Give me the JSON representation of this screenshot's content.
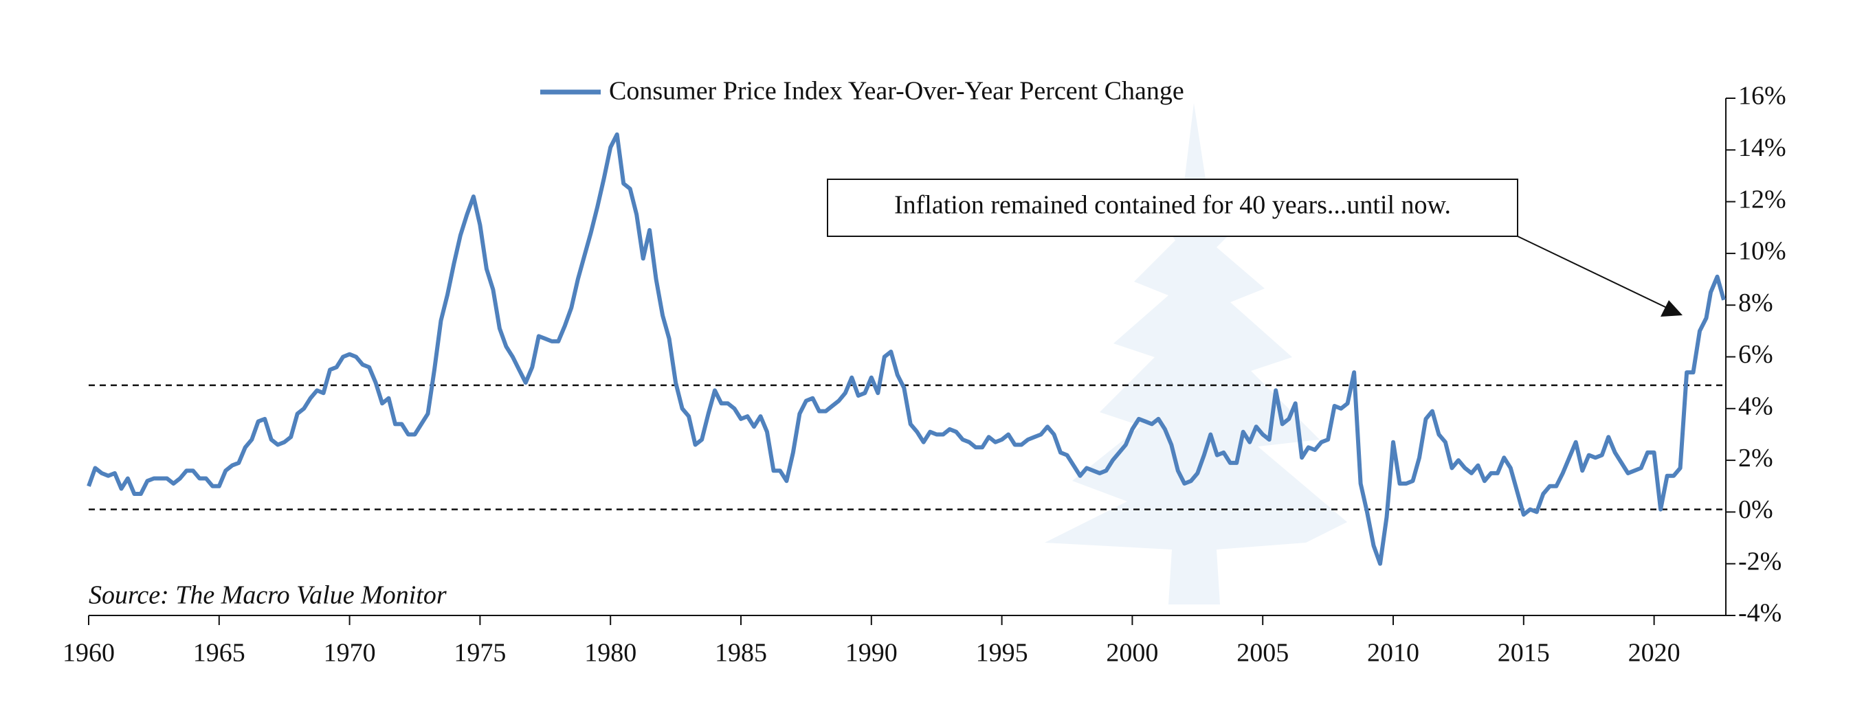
{
  "chart_data": {
    "type": "line",
    "series": [
      {
        "name": "Consumer Price Index Year-Over-Year Percent Change",
        "color": "#4f81bd",
        "x": [
          1960,
          1960.25,
          1960.5,
          1960.75,
          1961,
          1961.25,
          1961.5,
          1961.75,
          1962,
          1962.25,
          1962.5,
          1962.75,
          1963,
          1963.25,
          1963.5,
          1963.75,
          1964,
          1964.25,
          1964.5,
          1964.75,
          1965,
          1965.25,
          1965.5,
          1965.75,
          1966,
          1966.25,
          1966.5,
          1966.75,
          1967,
          1967.25,
          1967.5,
          1967.75,
          1968,
          1968.25,
          1968.5,
          1968.75,
          1969,
          1969.25,
          1969.5,
          1969.75,
          1970,
          1970.25,
          1970.5,
          1970.75,
          1971,
          1971.25,
          1971.5,
          1971.75,
          1972,
          1972.25,
          1972.5,
          1972.75,
          1973,
          1973.25,
          1973.5,
          1973.75,
          1974,
          1974.25,
          1974.5,
          1974.75,
          1975,
          1975.25,
          1975.5,
          1975.75,
          1976,
          1976.25,
          1976.5,
          1976.75,
          1977,
          1977.25,
          1977.5,
          1977.75,
          1978,
          1978.25,
          1978.5,
          1978.75,
          1979,
          1979.25,
          1979.5,
          1979.75,
          1980,
          1980.25,
          1980.5,
          1980.75,
          1981,
          1981.25,
          1981.5,
          1981.75,
          1982,
          1982.25,
          1982.5,
          1982.75,
          1983,
          1983.25,
          1983.5,
          1983.75,
          1984,
          1984.25,
          1984.5,
          1984.75,
          1985,
          1985.25,
          1985.5,
          1985.75,
          1986,
          1986.25,
          1986.5,
          1986.75,
          1987,
          1987.25,
          1987.5,
          1987.75,
          1988,
          1988.25,
          1988.5,
          1988.75,
          1989,
          1989.25,
          1989.5,
          1989.75,
          1990,
          1990.25,
          1990.5,
          1990.75,
          1991,
          1991.25,
          1991.5,
          1991.75,
          1992,
          1992.25,
          1992.5,
          1992.75,
          1993,
          1993.25,
          1993.5,
          1993.75,
          1994,
          1994.25,
          1994.5,
          1994.75,
          1995,
          1995.25,
          1995.5,
          1995.75,
          1996,
          1996.25,
          1996.5,
          1996.75,
          1997,
          1997.25,
          1997.5,
          1997.75,
          1998,
          1998.25,
          1998.5,
          1998.75,
          1999,
          1999.25,
          1999.5,
          1999.75,
          2000,
          2000.25,
          2000.5,
          2000.75,
          2001,
          2001.25,
          2001.5,
          2001.75,
          2002,
          2002.25,
          2002.5,
          2002.75,
          2003,
          2003.25,
          2003.5,
          2003.75,
          2004,
          2004.25,
          2004.5,
          2004.75,
          2005,
          2005.25,
          2005.5,
          2005.75,
          2006,
          2006.25,
          2006.5,
          2006.75,
          2007,
          2007.25,
          2007.5,
          2007.75,
          2008,
          2008.25,
          2008.5,
          2008.75,
          2009,
          2009.25,
          2009.5,
          2009.75,
          2010,
          2010.25,
          2010.5,
          2010.75,
          2011,
          2011.25,
          2011.5,
          2011.75,
          2012,
          2012.25,
          2012.5,
          2012.75,
          2013,
          2013.25,
          2013.5,
          2013.75,
          2014,
          2014.25,
          2014.5,
          2014.75,
          2015,
          2015.25,
          2015.5,
          2015.75,
          2016,
          2016.25,
          2016.5,
          2016.75,
          2017,
          2017.25,
          2017.5,
          2017.75,
          2018,
          2018.25,
          2018.5,
          2018.75,
          2019,
          2019.25,
          2019.5,
          2019.75,
          2020,
          2020.25,
          2020.5,
          2020.75,
          2021,
          2021.25,
          2021.5,
          2021.75,
          2022,
          2022.17,
          2022.42,
          2022.67
        ],
        "values": [
          1.0,
          1.7,
          1.5,
          1.4,
          1.5,
          0.9,
          1.3,
          0.7,
          0.7,
          1.2,
          1.3,
          1.3,
          1.3,
          1.1,
          1.3,
          1.6,
          1.6,
          1.3,
          1.3,
          1.0,
          1.0,
          1.6,
          1.8,
          1.9,
          2.5,
          2.8,
          3.5,
          3.6,
          2.8,
          2.6,
          2.7,
          2.9,
          3.8,
          4.0,
          4.4,
          4.7,
          4.6,
          5.5,
          5.6,
          6.0,
          6.1,
          6.0,
          5.7,
          5.6,
          5.0,
          4.2,
          4.4,
          3.4,
          3.4,
          3.0,
          3.0,
          3.4,
          3.8,
          5.5,
          7.4,
          8.4,
          9.6,
          10.7,
          11.5,
          12.2,
          11.1,
          9.4,
          8.6,
          7.1,
          6.4,
          6.0,
          5.5,
          5.0,
          5.6,
          6.8,
          6.7,
          6.6,
          6.6,
          7.2,
          7.9,
          9.0,
          9.9,
          10.8,
          11.8,
          12.9,
          14.1,
          14.6,
          12.7,
          12.5,
          11.5,
          9.8,
          10.9,
          9.0,
          7.6,
          6.7,
          5.0,
          4.0,
          3.7,
          2.6,
          2.8,
          3.8,
          4.7,
          4.2,
          4.2,
          4.0,
          3.6,
          3.7,
          3.3,
          3.7,
          3.1,
          1.6,
          1.6,
          1.2,
          2.3,
          3.8,
          4.3,
          4.4,
          3.9,
          3.9,
          4.1,
          4.3,
          4.6,
          5.2,
          4.5,
          4.6,
          5.2,
          4.6,
          6.0,
          6.2,
          5.3,
          4.8,
          3.4,
          3.1,
          2.7,
          3.1,
          3.0,
          3.0,
          3.2,
          3.1,
          2.8,
          2.7,
          2.5,
          2.5,
          2.9,
          2.7,
          2.8,
          3.0,
          2.6,
          2.6,
          2.8,
          2.9,
          3.0,
          3.3,
          3.0,
          2.3,
          2.2,
          1.8,
          1.4,
          1.7,
          1.6,
          1.5,
          1.6,
          2.0,
          2.3,
          2.6,
          3.2,
          3.6,
          3.5,
          3.4,
          3.6,
          3.2,
          2.6,
          1.6,
          1.1,
          1.2,
          1.5,
          2.2,
          3.0,
          2.2,
          2.3,
          1.9,
          1.9,
          3.1,
          2.7,
          3.3,
          3.0,
          2.8,
          4.7,
          3.4,
          3.6,
          4.2,
          2.1,
          2.5,
          2.4,
          2.7,
          2.8,
          4.1,
          4.0,
          4.2,
          5.4,
          1.1,
          0.0,
          -1.3,
          -2.0,
          -0.2,
          2.7,
          1.1,
          1.1,
          1.2,
          2.1,
          3.6,
          3.9,
          3.0,
          2.7,
          1.7,
          2.0,
          1.7,
          1.5,
          1.8,
          1.2,
          1.5,
          1.5,
          2.1,
          1.7,
          0.8,
          -0.1,
          0.1,
          0.0,
          0.7,
          1.0,
          1.0,
          1.5,
          2.1,
          2.7,
          1.6,
          2.2,
          2.1,
          2.2,
          2.9,
          2.3,
          1.9,
          1.5,
          1.6,
          1.7,
          2.3,
          2.3,
          0.1,
          1.4,
          1.4,
          1.7,
          5.4,
          5.4,
          7.0,
          7.5,
          8.5,
          9.1,
          8.2
        ]
      }
    ],
    "xlim": [
      1960,
      2022.75
    ],
    "xticks": [
      1960,
      1965,
      1970,
      1975,
      1980,
      1985,
      1990,
      1995,
      2000,
      2005,
      2010,
      2015,
      2020
    ],
    "ylim": [
      -4,
      16
    ],
    "yticks": [
      {
        "value": -4,
        "label": "-4%"
      },
      {
        "value": -2,
        "label": "-2%"
      },
      {
        "value": 0,
        "label": "0%"
      },
      {
        "value": 2,
        "label": "2%"
      },
      {
        "value": 4,
        "label": "4%"
      },
      {
        "value": 6,
        "label": "6%"
      },
      {
        "value": 8,
        "label": "8%"
      },
      {
        "value": 10,
        "label": "10%"
      },
      {
        "value": 12,
        "label": "12%"
      },
      {
        "value": 14,
        "label": "14%"
      },
      {
        "value": 16,
        "label": "16%"
      }
    ],
    "hlines": [
      4.9,
      0.1
    ],
    "annotation": "Inflation remained contained for 40 years...until now.",
    "source": "Source: The Macro Value Monitor"
  }
}
